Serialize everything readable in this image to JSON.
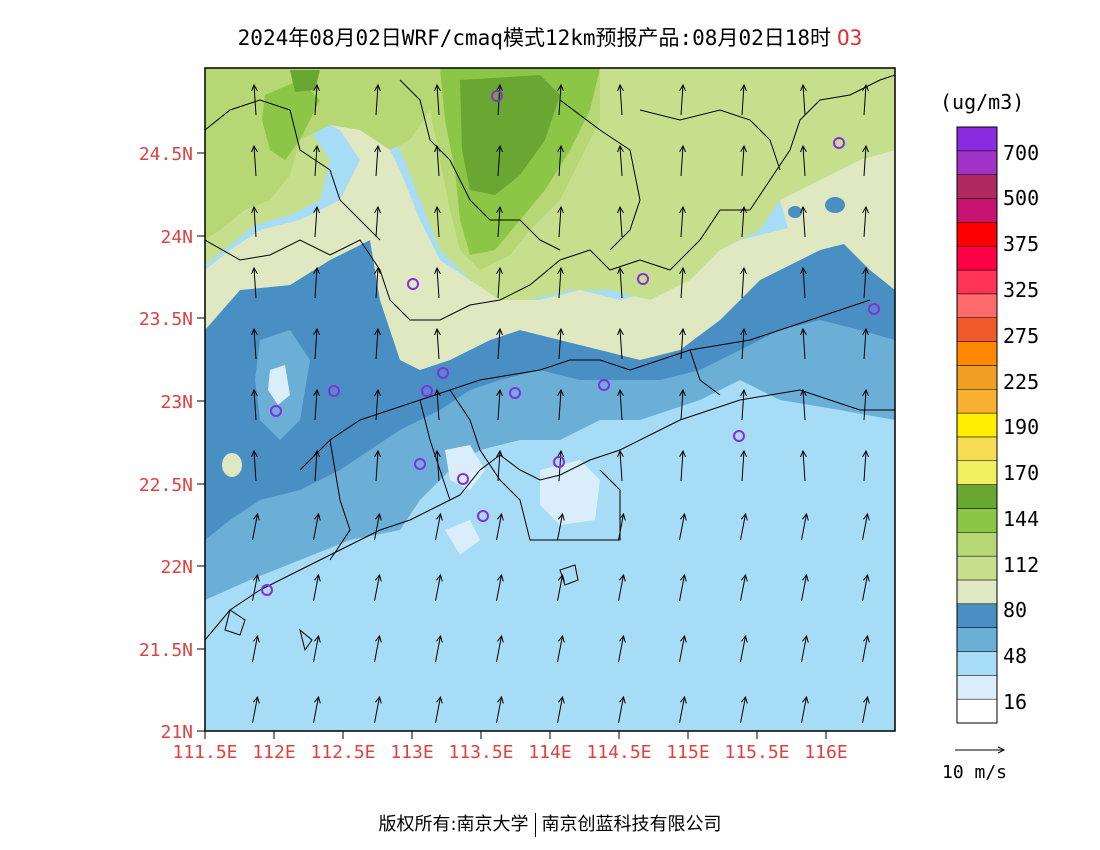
{
  "title": {
    "text": "2024年08月02日WRF/cmaq模式12km预报产品:08月02日18时",
    "pollutant": "O3"
  },
  "map": {
    "lat_labels": [
      "24.5N",
      "24N",
      "23.5N",
      "23N",
      "22.5N",
      "22N",
      "21.5N",
      "21N"
    ],
    "lon_labels": [
      "111.5E",
      "112E",
      "112.5E",
      "113E",
      "113.5E",
      "114E",
      "114.5E",
      "115E",
      "115.5E",
      "116E"
    ],
    "field": "O3 concentration",
    "colors": {
      "c16": "#ffffff",
      "c32": "#d9eefa",
      "c48": "#a6dcf5",
      "c64": "#6baed6",
      "c80": "#4a8fc4",
      "c96": "#dfe8c0",
      "c112": "#c6df8c",
      "c128": "#b6d774",
      "c144": "#8cc646",
      "c160": "#6aa632"
    }
  },
  "legend": {
    "unit": "(ug/m3)",
    "labels": [
      "700",
      "500",
      "375",
      "325",
      "275",
      "225",
      "190",
      "170",
      "144",
      "112",
      "80",
      "48",
      "16"
    ],
    "colors": [
      "#ffffff",
      "#d9eefa",
      "#a6dcf5",
      "#6baed6",
      "#4a8fc4",
      "#dfe8c0",
      "#c6df8c",
      "#b6d774",
      "#8cc646",
      "#6aa632",
      "#f0f060",
      "#f5dc50",
      "#ffee00",
      "#f8b030",
      "#f0a020",
      "#ff8800",
      "#f05a2a",
      "#ff6a6a",
      "#ff3355",
      "#ff0044",
      "#ff0000",
      "#c81470",
      "#b02a60",
      "#a032c8",
      "#8a2be2"
    ]
  },
  "wind_reference": {
    "label": "10 m/s"
  },
  "footer": {
    "left": "版权所有:南京大学",
    "right": "南京创蓝科技有限公司"
  }
}
